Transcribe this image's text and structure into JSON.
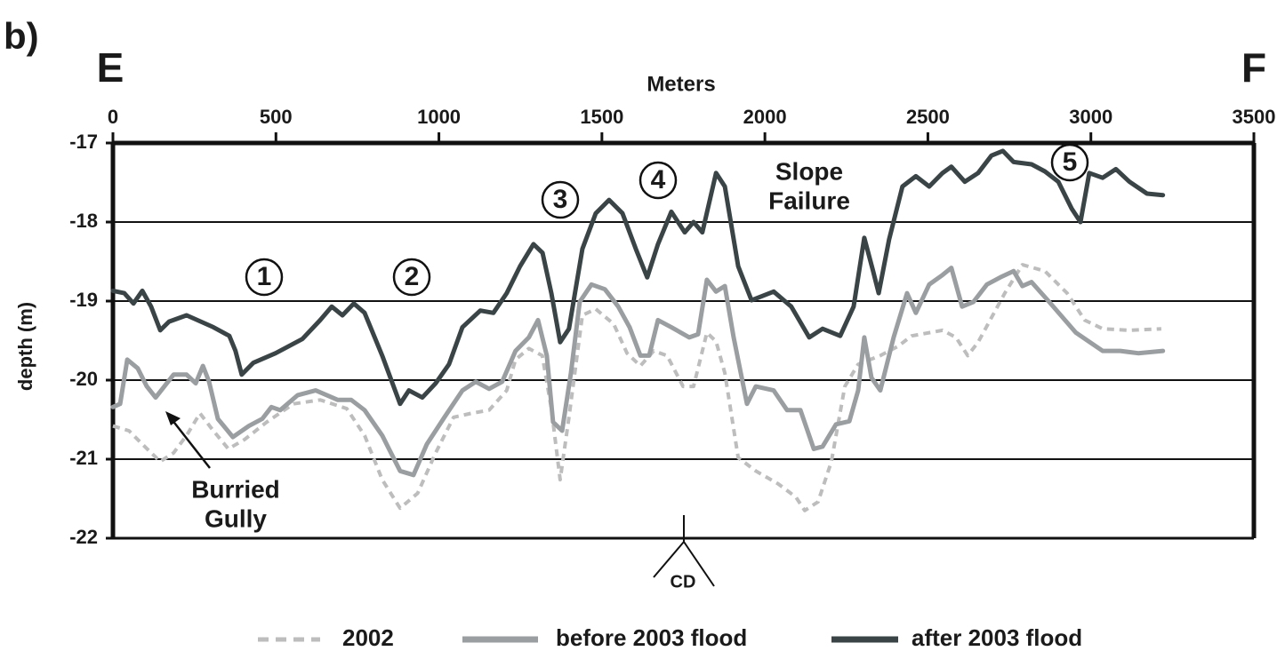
{
  "chart_data": {
    "type": "line",
    "panel_label": "b)",
    "left_end_label": "E",
    "right_end_label": "F",
    "x_label": "Meters",
    "y_label": "depth (m)",
    "xlim": [
      0,
      3500
    ],
    "xticks": [
      0,
      500,
      1000,
      1500,
      2000,
      2500,
      3000,
      3500
    ],
    "ylim": [
      -22,
      -17
    ],
    "yticks": [
      -17,
      -18,
      -19,
      -20,
      -21,
      -22
    ],
    "grid": true,
    "x_axis_side": "top",
    "annotations": [
      {
        "text": "1"
      },
      {
        "text": "2"
      },
      {
        "text": "3"
      },
      {
        "text": "4"
      },
      {
        "text": "5"
      },
      {
        "lines": [
          "Slope",
          "Failure"
        ]
      },
      {
        "lines": [
          "Burried",
          "Gully"
        ]
      },
      {
        "text": "CD"
      }
    ],
    "series": [
      {
        "name": "2002",
        "color": "#bdbdbd",
        "dashed": true,
        "x": [
          0,
          49,
          90,
          145,
          186,
          226,
          267,
          308,
          354,
          404,
          472,
          554,
          636,
          717,
          772,
          826,
          881,
          935,
          990,
          1045,
          1099,
          1154,
          1208,
          1235,
          1276,
          1317,
          1345,
          1372,
          1399,
          1440,
          1481,
          1536,
          1577,
          1618,
          1659,
          1700,
          1749,
          1781,
          1822,
          1850,
          1877,
          1918,
          1972,
          2040,
          2095,
          2122,
          2163,
          2204,
          2245,
          2286,
          2354,
          2409,
          2450,
          2545,
          2586,
          2622,
          2654,
          2736,
          2790,
          2859,
          2927,
          2981,
          3036,
          3118,
          3216
        ],
        "values": [
          -20.58,
          -20.64,
          -20.81,
          -21.03,
          -20.92,
          -20.7,
          -20.42,
          -20.64,
          -20.87,
          -20.75,
          -20.53,
          -20.3,
          -20.25,
          -20.36,
          -20.7,
          -21.26,
          -21.62,
          -21.43,
          -20.92,
          -20.47,
          -20.42,
          -20.38,
          -20.13,
          -19.74,
          -19.6,
          -19.69,
          -20.36,
          -21.26,
          -20.47,
          -19.18,
          -19.1,
          -19.29,
          -19.66,
          -19.82,
          -19.63,
          -19.69,
          -20.08,
          -20.08,
          -19.4,
          -19.51,
          -19.91,
          -20.98,
          -21.15,
          -21.31,
          -21.48,
          -21.65,
          -21.54,
          -21.03,
          -20.08,
          -19.8,
          -19.69,
          -19.57,
          -19.44,
          -19.37,
          -19.46,
          -19.69,
          -19.52,
          -18.9,
          -18.54,
          -18.62,
          -18.9,
          -19.24,
          -19.35,
          -19.37,
          -19.35
        ]
      },
      {
        "name": "before 2003 flood",
        "color": "#9a9ea0",
        "dashed": false,
        "x": [
          0,
          22,
          44,
          76,
          104,
          131,
          186,
          226,
          254,
          276,
          295,
          322,
          368,
          417,
          458,
          486,
          513,
          567,
          622,
          690,
          731,
          772,
          826,
          881,
          922,
          963,
          1017,
          1072,
          1113,
          1154,
          1194,
          1235,
          1276,
          1304,
          1331,
          1350,
          1378,
          1405,
          1432,
          1468,
          1509,
          1550,
          1585,
          1618,
          1645,
          1672,
          1713,
          1768,
          1795,
          1822,
          1850,
          1877,
          1904,
          1945,
          1972,
          2027,
          2068,
          2109,
          2150,
          2177,
          2218,
          2259,
          2286,
          2305,
          2327,
          2354,
          2395,
          2436,
          2463,
          2504,
          2545,
          2572,
          2605,
          2640,
          2681,
          2722,
          2763,
          2790,
          2818,
          2872,
          2954,
          3036,
          3090,
          3145,
          3221
        ],
        "values": [
          -20.34,
          -20.3,
          -19.74,
          -19.85,
          -20.08,
          -20.22,
          -19.93,
          -19.93,
          -20.04,
          -19.82,
          -20.02,
          -20.49,
          -20.72,
          -20.58,
          -20.49,
          -20.34,
          -20.38,
          -20.19,
          -20.13,
          -20.25,
          -20.25,
          -20.38,
          -20.7,
          -21.15,
          -21.2,
          -20.81,
          -20.47,
          -20.13,
          -20.02,
          -20.11,
          -20.02,
          -19.63,
          -19.46,
          -19.24,
          -19.69,
          -20.53,
          -20.64,
          -19.91,
          -19.01,
          -18.79,
          -18.85,
          -19.07,
          -19.33,
          -19.69,
          -19.69,
          -19.24,
          -19.33,
          -19.46,
          -19.42,
          -18.73,
          -18.88,
          -18.81,
          -19.46,
          -20.3,
          -20.08,
          -20.13,
          -20.38,
          -20.38,
          -20.87,
          -20.84,
          -20.56,
          -20.52,
          -20.13,
          -19.46,
          -19.97,
          -20.13,
          -19.46,
          -18.9,
          -19.15,
          -18.79,
          -18.67,
          -18.58,
          -19.07,
          -19.01,
          -18.79,
          -18.7,
          -18.62,
          -18.81,
          -18.76,
          -19.01,
          -19.4,
          -19.63,
          -19.63,
          -19.66,
          -19.63
        ]
      },
      {
        "name": "after 2003 flood",
        "color": "#3a4446",
        "dashed": false,
        "x": [
          0,
          35,
          63,
          90,
          117,
          145,
          172,
          226,
          308,
          357,
          376,
          395,
          431,
          499,
          581,
          636,
          671,
          704,
          739,
          772,
          826,
          881,
          908,
          949,
          990,
          1031,
          1072,
          1127,
          1167,
          1208,
          1249,
          1290,
          1318,
          1345,
          1372,
          1399,
          1440,
          1481,
          1522,
          1563,
          1604,
          1639,
          1672,
          1713,
          1754,
          1781,
          1808,
          1850,
          1877,
          1918,
          1959,
          2027,
          2081,
          2136,
          2177,
          2231,
          2272,
          2305,
          2332,
          2349,
          2381,
          2422,
          2463,
          2504,
          2545,
          2572,
          2613,
          2654,
          2695,
          2730,
          2763,
          2818,
          2859,
          2900,
          2941,
          2968,
          2995,
          3036,
          3077,
          3118,
          3172,
          3221
        ],
        "values": [
          -18.87,
          -18.9,
          -19.03,
          -18.87,
          -19.07,
          -19.37,
          -19.26,
          -19.18,
          -19.33,
          -19.44,
          -19.63,
          -19.93,
          -19.78,
          -19.66,
          -19.48,
          -19.24,
          -19.07,
          -19.18,
          -19.03,
          -19.15,
          -19.69,
          -20.3,
          -20.13,
          -20.22,
          -20.04,
          -19.8,
          -19.33,
          -19.12,
          -19.15,
          -18.9,
          -18.56,
          -18.28,
          -18.39,
          -18.9,
          -19.52,
          -19.35,
          -18.34,
          -17.89,
          -17.72,
          -17.89,
          -18.34,
          -18.7,
          -18.28,
          -17.87,
          -18.13,
          -18,
          -18.13,
          -17.38,
          -17.55,
          -18.56,
          -18.99,
          -18.88,
          -19.07,
          -19.46,
          -19.35,
          -19.44,
          -19.07,
          -18.2,
          -18.62,
          -18.9,
          -18.22,
          -17.55,
          -17.42,
          -17.55,
          -17.38,
          -17.3,
          -17.49,
          -17.38,
          -17.16,
          -17.1,
          -17.24,
          -17.27,
          -17.36,
          -17.49,
          -17.83,
          -18,
          -17.38,
          -17.44,
          -17.33,
          -17.49,
          -17.64,
          -17.66
        ]
      }
    ]
  }
}
